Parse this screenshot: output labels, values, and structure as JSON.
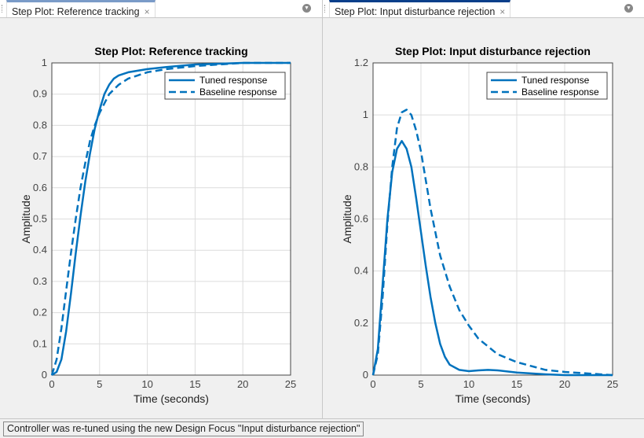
{
  "tabs": [
    {
      "label": "Step Plot: Reference tracking",
      "close": "×"
    },
    {
      "label": "Step Plot: Input disturbance rejection",
      "close": "×"
    }
  ],
  "status": "Controller was re-tuned using the new Design Focus \"Input disturbance rejection\"",
  "colors": {
    "line": "#0072bd",
    "grid": "#dcdcdc"
  },
  "chart_data": [
    {
      "type": "line",
      "title": "Step Plot: Reference tracking",
      "xlabel": "Time (seconds)",
      "ylabel": "Amplitude",
      "xlim": [
        0,
        25
      ],
      "ylim": [
        0,
        1
      ],
      "xticks": [
        0,
        5,
        10,
        15,
        20,
        25
      ],
      "yticks": [
        0,
        0.1,
        0.2,
        0.3,
        0.4,
        0.5,
        0.6,
        0.7,
        0.8,
        0.9,
        1
      ],
      "legend": "top-right",
      "grid": true,
      "series": [
        {
          "name": "Tuned response",
          "style": "solid",
          "x": [
            0,
            0.5,
            1,
            1.5,
            2,
            2.5,
            3,
            3.5,
            4,
            4.5,
            5,
            5.5,
            6,
            6.5,
            7,
            8,
            9,
            10,
            12,
            15,
            20,
            25
          ],
          "y": [
            0,
            0.01,
            0.05,
            0.14,
            0.26,
            0.39,
            0.51,
            0.62,
            0.71,
            0.79,
            0.85,
            0.9,
            0.93,
            0.95,
            0.96,
            0.97,
            0.975,
            0.98,
            0.987,
            0.995,
            1,
            1
          ]
        },
        {
          "name": "Baseline response",
          "style": "dashed",
          "x": [
            0,
            0.5,
            1,
            1.5,
            2,
            2.5,
            3,
            3.5,
            4,
            4.5,
            5,
            5.5,
            6,
            7,
            8,
            9,
            10,
            12,
            15,
            20,
            25
          ],
          "y": [
            0,
            0.05,
            0.15,
            0.27,
            0.39,
            0.5,
            0.6,
            0.68,
            0.75,
            0.8,
            0.84,
            0.87,
            0.9,
            0.93,
            0.95,
            0.96,
            0.97,
            0.98,
            0.99,
            1,
            1
          ]
        }
      ]
    },
    {
      "type": "line",
      "title": "Step Plot: Input disturbance rejection",
      "xlabel": "Time (seconds)",
      "ylabel": "Amplitude",
      "xlim": [
        0,
        25
      ],
      "ylim": [
        0,
        1.2
      ],
      "xticks": [
        0,
        5,
        10,
        15,
        20,
        25
      ],
      "yticks": [
        0,
        0.2,
        0.4,
        0.6,
        0.8,
        1,
        1.2
      ],
      "legend": "top-right",
      "grid": true,
      "series": [
        {
          "name": "Tuned response",
          "style": "solid",
          "x": [
            0,
            0.5,
            1,
            1.5,
            2,
            2.5,
            3,
            3.5,
            4,
            4.5,
            5,
            5.5,
            6,
            6.5,
            7,
            7.5,
            8,
            9,
            10,
            11,
            12,
            13,
            15,
            18,
            20,
            25
          ],
          "y": [
            0,
            0.1,
            0.35,
            0.6,
            0.78,
            0.87,
            0.9,
            0.87,
            0.8,
            0.68,
            0.55,
            0.42,
            0.3,
            0.2,
            0.12,
            0.07,
            0.04,
            0.02,
            0.015,
            0.018,
            0.02,
            0.018,
            0.01,
            0.003,
            0,
            0
          ]
        },
        {
          "name": "Baseline response",
          "style": "dashed",
          "x": [
            0,
            0.5,
            1,
            1.5,
            2,
            2.5,
            3,
            3.5,
            4,
            4.5,
            5,
            5.5,
            6,
            7,
            8,
            9,
            10,
            11,
            12,
            13,
            15,
            18,
            20,
            25
          ],
          "y": [
            0,
            0.08,
            0.3,
            0.58,
            0.8,
            0.95,
            1.01,
            1.02,
            1.0,
            0.94,
            0.86,
            0.75,
            0.64,
            0.46,
            0.34,
            0.25,
            0.19,
            0.14,
            0.11,
            0.08,
            0.05,
            0.02,
            0.012,
            0
          ]
        }
      ]
    }
  ]
}
